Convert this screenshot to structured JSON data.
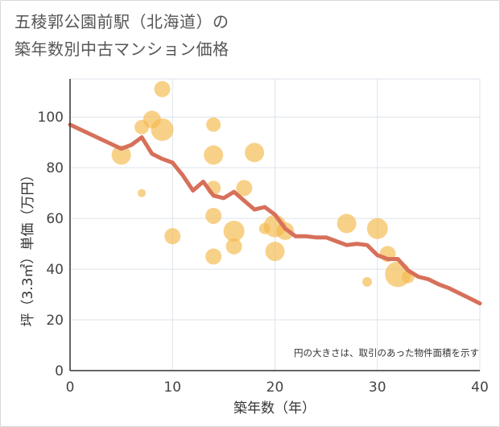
{
  "chart_data": {
    "type": "scatter",
    "title_line1": "五稜郭公園前駅（北海道）の",
    "title_line2": "築年数別中古マンション価格",
    "xlabel": "築年数（年）",
    "ylabel": "坪（3.3㎡）単価（万円）",
    "xlim": [
      0,
      40
    ],
    "ylim": [
      0,
      115
    ],
    "xticks": [
      0,
      10,
      20,
      30,
      40
    ],
    "yticks": [
      0,
      20,
      40,
      60,
      80,
      100
    ],
    "grid": true,
    "note": "円の大きさは、取引のあった物件面積を示す",
    "colors": {
      "bubble": "#f5b94a",
      "line": "#d7705a",
      "grid": "#dde3ea",
      "axis": "#333333"
    },
    "bubbles": [
      {
        "x": 5,
        "y": 85,
        "size": 12
      },
      {
        "x": 7,
        "y": 96,
        "size": 9
      },
      {
        "x": 7,
        "y": 70,
        "size": 5
      },
      {
        "x": 8,
        "y": 99,
        "size": 11
      },
      {
        "x": 9,
        "y": 111,
        "size": 10
      },
      {
        "x": 9,
        "y": 95,
        "size": 14
      },
      {
        "x": 10,
        "y": 53,
        "size": 10
      },
      {
        "x": 14,
        "y": 97,
        "size": 9
      },
      {
        "x": 14,
        "y": 85,
        "size": 12
      },
      {
        "x": 14,
        "y": 72,
        "size": 9
      },
      {
        "x": 14,
        "y": 61,
        "size": 10
      },
      {
        "x": 14,
        "y": 45,
        "size": 10
      },
      {
        "x": 16,
        "y": 55,
        "size": 13
      },
      {
        "x": 16,
        "y": 49,
        "size": 10
      },
      {
        "x": 17,
        "y": 72,
        "size": 10
      },
      {
        "x": 18,
        "y": 86,
        "size": 12
      },
      {
        "x": 19,
        "y": 56,
        "size": 7
      },
      {
        "x": 20,
        "y": 57,
        "size": 14
      },
      {
        "x": 20,
        "y": 47,
        "size": 12
      },
      {
        "x": 21,
        "y": 55,
        "size": 11
      },
      {
        "x": 27,
        "y": 58,
        "size": 12
      },
      {
        "x": 29,
        "y": 35,
        "size": 6
      },
      {
        "x": 30,
        "y": 56,
        "size": 13
      },
      {
        "x": 31,
        "y": 46,
        "size": 10
      },
      {
        "x": 32,
        "y": 38,
        "size": 16
      },
      {
        "x": 33,
        "y": 37,
        "size": 8
      }
    ],
    "trend": [
      {
        "x": 0,
        "y": 97
      },
      {
        "x": 5,
        "y": 87.5
      },
      {
        "x": 6,
        "y": 89
      },
      {
        "x": 7,
        "y": 92
      },
      {
        "x": 8,
        "y": 85.5
      },
      {
        "x": 9,
        "y": 83.5
      },
      {
        "x": 10,
        "y": 82
      },
      {
        "x": 11,
        "y": 77
      },
      {
        "x": 12,
        "y": 71
      },
      {
        "x": 13,
        "y": 74.5
      },
      {
        "x": 14,
        "y": 69
      },
      {
        "x": 15,
        "y": 68
      },
      {
        "x": 16,
        "y": 70.5
      },
      {
        "x": 17,
        "y": 67
      },
      {
        "x": 18,
        "y": 63.5
      },
      {
        "x": 19,
        "y": 64.5
      },
      {
        "x": 20,
        "y": 61.5
      },
      {
        "x": 21,
        "y": 56
      },
      {
        "x": 22,
        "y": 53
      },
      {
        "x": 23,
        "y": 53
      },
      {
        "x": 24,
        "y": 52.5
      },
      {
        "x": 25,
        "y": 52.5
      },
      {
        "x": 26,
        "y": 51
      },
      {
        "x": 27,
        "y": 49.5
      },
      {
        "x": 28,
        "y": 50
      },
      {
        "x": 29,
        "y": 49.5
      },
      {
        "x": 30,
        "y": 45.5
      },
      {
        "x": 31,
        "y": 44
      },
      {
        "x": 32,
        "y": 44
      },
      {
        "x": 33,
        "y": 39.5
      },
      {
        "x": 34,
        "y": 37
      },
      {
        "x": 35,
        "y": 36
      },
      {
        "x": 36,
        "y": 34
      },
      {
        "x": 37,
        "y": 32.5
      },
      {
        "x": 38,
        "y": 30.5
      },
      {
        "x": 39,
        "y": 28.5
      },
      {
        "x": 40,
        "y": 26.5
      }
    ]
  }
}
